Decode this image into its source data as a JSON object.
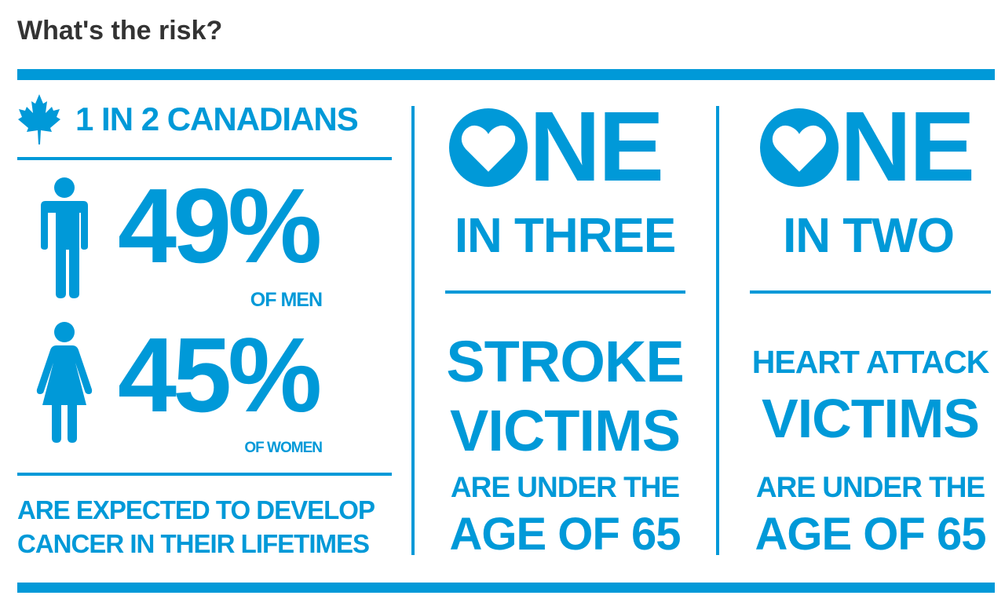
{
  "title": "What's the risk?",
  "accent_color": "#0099d8",
  "cancer": {
    "headline": "1 IN 2 CANADIANS",
    "headline_icon": "maple-leaf-icon",
    "men": {
      "value": "49%",
      "label": "OF MEN",
      "icon": "man-icon"
    },
    "women": {
      "value": "45%",
      "label": "OF WOMEN",
      "icon": "woman-icon"
    },
    "footer_line1": "ARE EXPECTED TO DEVELOP",
    "footer_line2": "CANCER IN THEIR LIFETIMES"
  },
  "stroke": {
    "one": "NE",
    "ratio": "IN THREE",
    "line1": "STROKE",
    "line2": "VICTIMS",
    "line3": "ARE UNDER THE",
    "line4": "AGE OF 65"
  },
  "heart": {
    "one": "NE",
    "ratio": "IN TWO",
    "line1": "HEART ATTACK",
    "line2": "VICTIMS",
    "line3": "ARE UNDER THE",
    "line4": "AGE OF 65"
  }
}
